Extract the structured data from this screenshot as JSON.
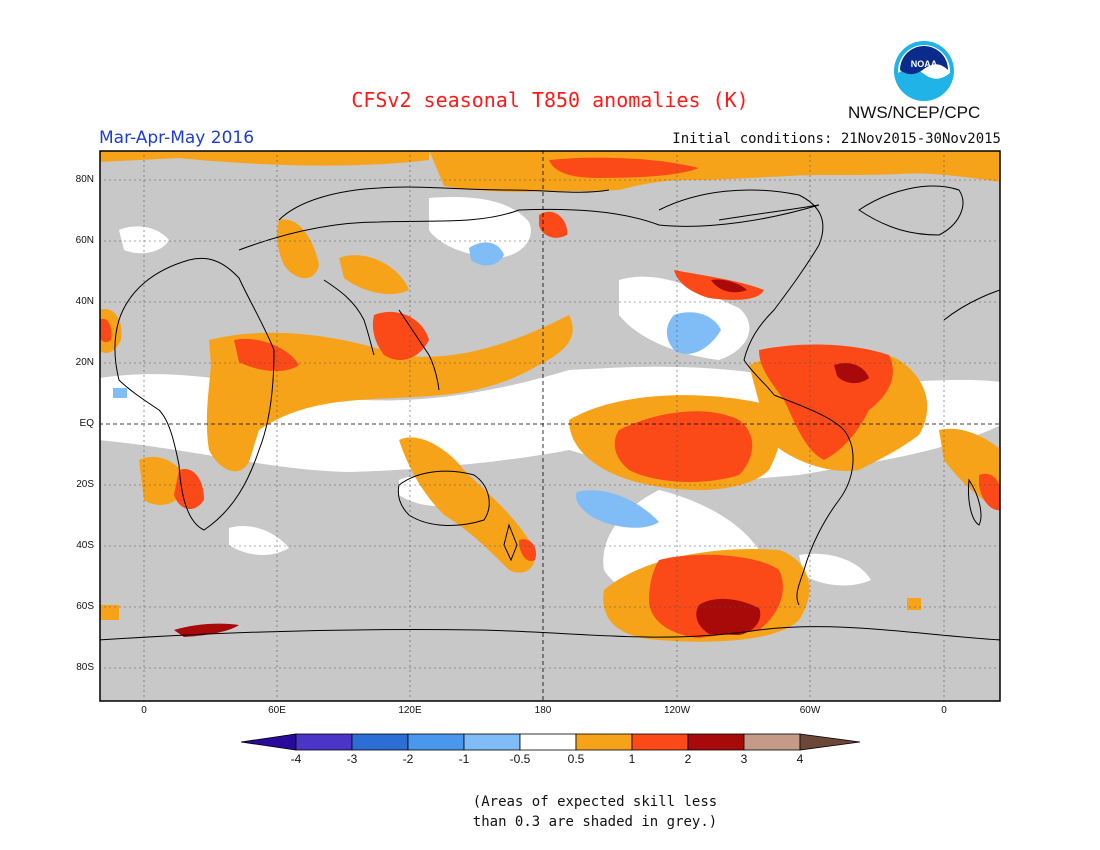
{
  "title": "CFSv2 seasonal T850 anomalies (K)",
  "season": "Mar-Apr-May 2016",
  "initial_conditions": "Initial conditions: 21Nov2015-30Nov2015",
  "agency": "NWS/NCEP/CPC",
  "logo_text": "NOAA",
  "lat_labels": [
    "80N",
    "60N",
    "40N",
    "20N",
    "EQ",
    "20S",
    "40S",
    "60S",
    "80S"
  ],
  "lon_labels": [
    "0",
    "60E",
    "120E",
    "180",
    "120W",
    "60W",
    "0"
  ],
  "colorbar": {
    "labels": [
      "-4",
      "-3",
      "-2",
      "-1",
      "-0.5",
      "0.5",
      "1",
      "2",
      "3",
      "4"
    ],
    "colors": [
      "#2a0a9a",
      "#4a35c8",
      "#2d6ed6",
      "#4a97ee",
      "#80bcf5",
      "#ffffff",
      "#f7a31a",
      "#fb4a17",
      "#a80a0a",
      "#c69a88",
      "#6b4738"
    ]
  },
  "note_lines": [
    "(Areas of expected skill less",
    "than 0.3 are shaded in grey.)"
  ],
  "colors": {
    "title": "#ff1a1a",
    "season": "#1e3ecf",
    "skill_grey": "#c8c8c8",
    "anom_05_1": "#f7a31a",
    "anom_1_2": "#fb4a17",
    "anom_2_3": "#a80a0a",
    "anom_neg_05_1": "#80bcf5",
    "anom_neg_1_2": "#4a97ee"
  }
}
